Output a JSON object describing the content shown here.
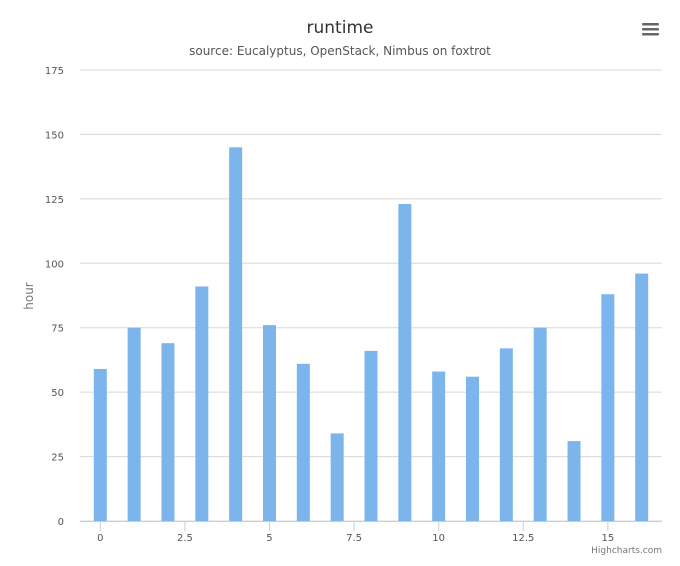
{
  "chart_data": {
    "type": "bar",
    "title": "runtime",
    "subtitle": "source: Eucalyptus, OpenStack, Nimbus on foxtrot",
    "xlabel": "",
    "ylabel": "hour",
    "x": [
      0,
      1,
      2,
      3,
      4,
      5,
      6,
      7,
      8,
      9,
      10,
      11,
      12,
      13,
      14,
      15,
      16
    ],
    "values": [
      59,
      75,
      69,
      91,
      145,
      76,
      61,
      34,
      66,
      123,
      58,
      56,
      67,
      75,
      31,
      88,
      96
    ],
    "xlim": [
      -0.6,
      16.6
    ],
    "ylim": [
      0,
      175
    ],
    "xticks": [
      0,
      2.5,
      5,
      7.5,
      10,
      12.5,
      15
    ],
    "xtick_labels": [
      "0",
      "2.5",
      "5",
      "7.5",
      "10",
      "12.5",
      "15"
    ],
    "yticks": [
      0,
      25,
      50,
      75,
      100,
      125,
      150,
      175
    ],
    "ytick_labels": [
      "0",
      "25",
      "50",
      "75",
      "100",
      "125",
      "150",
      "175"
    ],
    "grid": true,
    "bar_color": "#7cb5ec",
    "credits": "Highcharts.com"
  },
  "menu": {
    "icon": "hamburger-menu-icon"
  }
}
